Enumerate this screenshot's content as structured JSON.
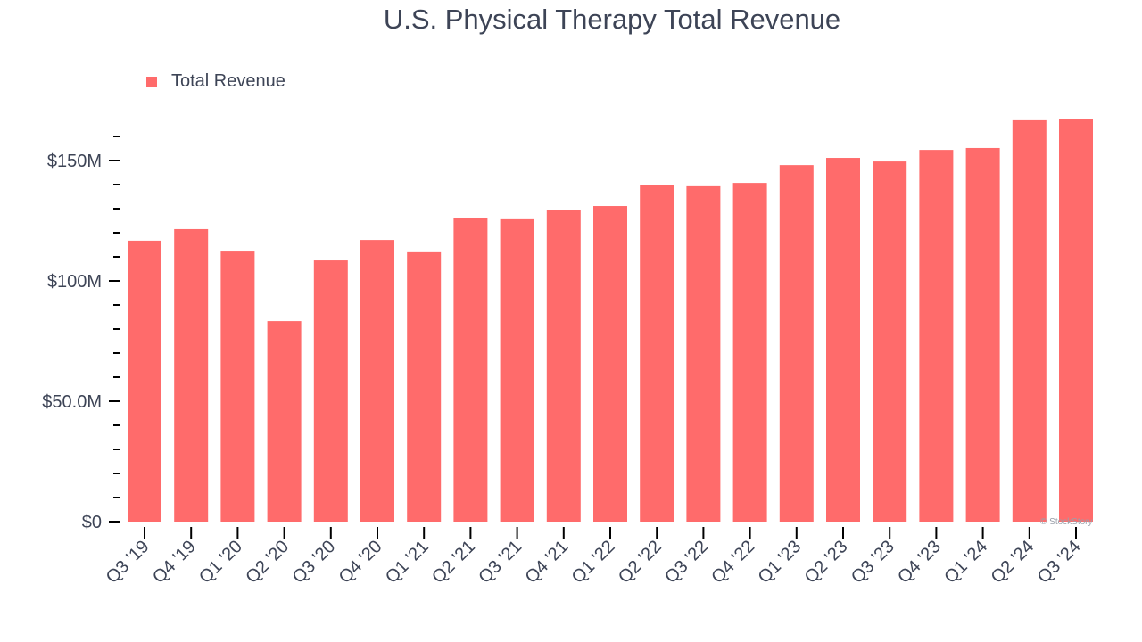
{
  "chart_data": {
    "type": "bar",
    "title": "U.S. Physical Therapy Total Revenue",
    "xlabel": "",
    "ylabel": "",
    "categories": [
      "Q3 '19",
      "Q4 '19",
      "Q1 '20",
      "Q2 '20",
      "Q3 '20",
      "Q4 '20",
      "Q1 '21",
      "Q2 '21",
      "Q3 '21",
      "Q4 '21",
      "Q1 '22",
      "Q2 '22",
      "Q3 '22",
      "Q4 '22",
      "Q1 '23",
      "Q2 '23",
      "Q3 '23",
      "Q4 '23",
      "Q1 '24",
      "Q2 '24",
      "Q3 '24"
    ],
    "series": [
      {
        "name": "Total Revenue",
        "color": "#ff6b6b",
        "values": [
          116.7,
          121.5,
          112.2,
          83.3,
          108.5,
          117.0,
          111.9,
          126.3,
          125.6,
          129.3,
          131.1,
          140.0,
          139.3,
          140.7,
          148.1,
          151.1,
          149.6,
          154.4,
          155.2,
          166.7,
          167.4
        ]
      }
    ],
    "ylim": [
      0,
      160
    ],
    "yticks": [
      0,
      50,
      100,
      150
    ],
    "ytick_labels": [
      "$0",
      "$50.0M",
      "$100M",
      "$150M"
    ],
    "legend": "top-left",
    "grid": false
  },
  "watermark": "© StockStory"
}
